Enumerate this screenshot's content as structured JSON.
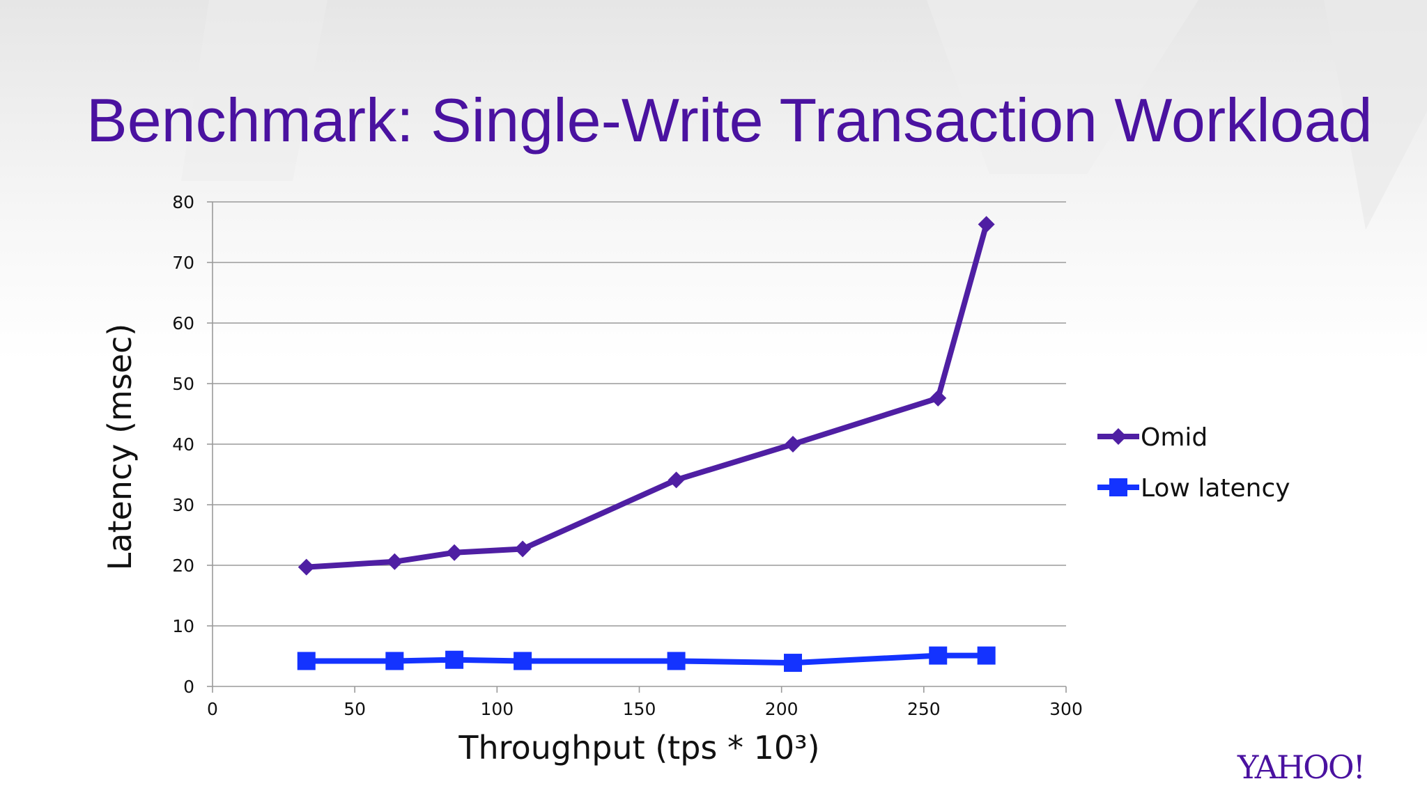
{
  "slide": {
    "title": "Benchmark: Single-Write Transaction Workload",
    "logo": "YAHOO!"
  },
  "colors": {
    "title": "#4a12a0",
    "omid": "#4f1fa3",
    "low_latency": "#1433ff",
    "grid": "#9a9a9a",
    "text": "#111111"
  },
  "chart_data": {
    "type": "line",
    "title": "",
    "xlabel": "Throughput (tps * 10³)",
    "ylabel": "Latency (msec)",
    "xlim": [
      0,
      300
    ],
    "ylim": [
      0,
      80
    ],
    "x_ticks": [
      0,
      50,
      100,
      150,
      200,
      250,
      300
    ],
    "y_ticks": [
      0,
      10,
      20,
      30,
      40,
      50,
      60,
      70,
      80
    ],
    "grid": "horizontal",
    "legend_position": "right",
    "series": [
      {
        "name": "Omid",
        "marker": "diamond",
        "color": "#4f1fa3",
        "x": [
          33,
          64,
          85,
          109,
          163,
          204,
          255,
          272
        ],
        "y": [
          19.7,
          20.6,
          22.1,
          22.7,
          34.1,
          40.0,
          47.6,
          76.3
        ]
      },
      {
        "name": "Low latency",
        "marker": "square",
        "color": "#1433ff",
        "x": [
          33,
          64,
          85,
          109,
          163,
          204,
          255,
          272
        ],
        "y": [
          4.2,
          4.2,
          4.4,
          4.2,
          4.2,
          3.9,
          5.1,
          5.1
        ]
      }
    ]
  }
}
